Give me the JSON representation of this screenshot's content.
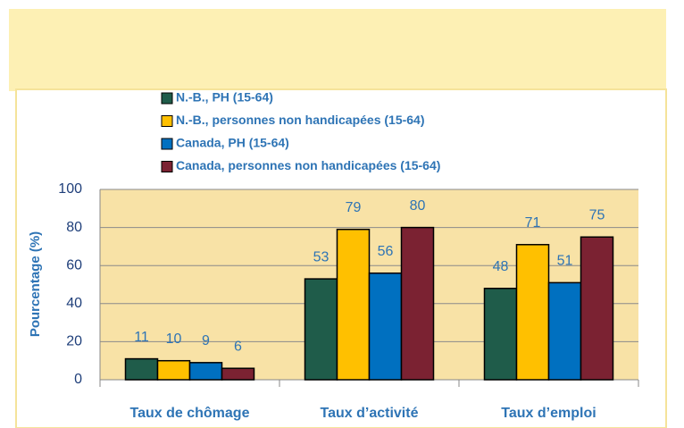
{
  "chart_data": {
    "type": "bar",
    "categories": [
      "Taux de chômage",
      "Taux d’activité",
      "Taux d’emploi"
    ],
    "ylabel": "Pourcentage (%)",
    "series": [
      {
        "name": "N.-B., PH (15-64)",
        "color": "#1f5c4a",
        "values": [
          11,
          53,
          48
        ]
      },
      {
        "name": "N.-B., personnes non handicapées (15-64)",
        "color": "#ffc000",
        "values": [
          10,
          79,
          71
        ]
      },
      {
        "name": "Canada, PH (15-64)",
        "color": "#0070c0",
        "values": [
          9,
          56,
          51
        ]
      },
      {
        "name": "Canada, personnes non handicapées (15-64)",
        "color": "#7b2232",
        "values": [
          6,
          80,
          75
        ]
      }
    ],
    "ylim": [
      0,
      100
    ],
    "yticks": [
      0,
      20,
      40,
      60,
      80,
      100
    ],
    "grid": true,
    "legend": "top"
  }
}
